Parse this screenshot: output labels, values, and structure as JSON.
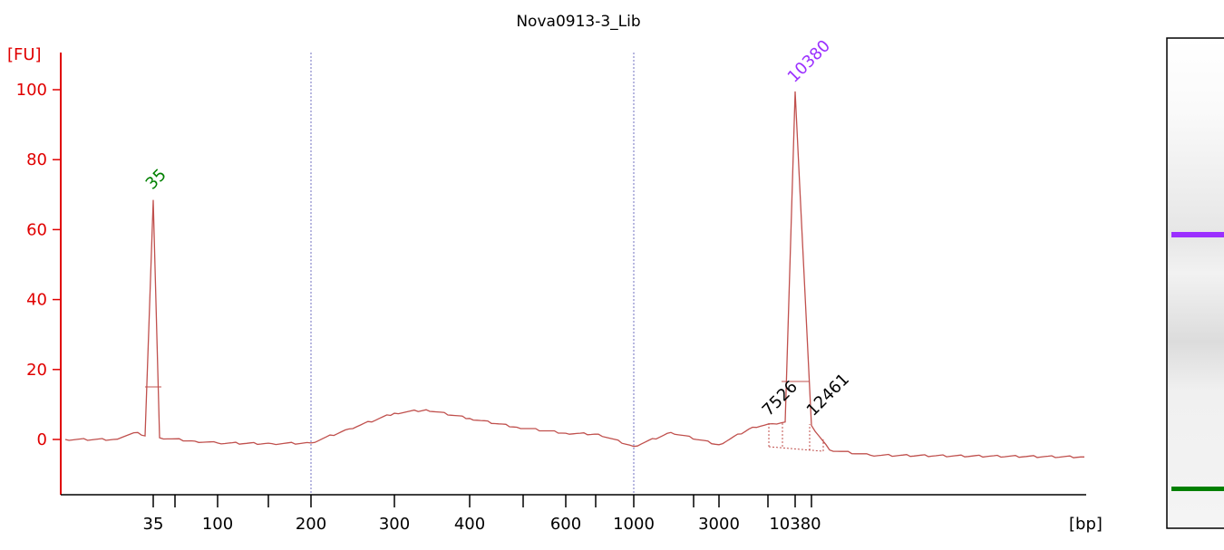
{
  "chart_data": {
    "type": "line",
    "title": "Nova0913-3_Lib",
    "ylabel": "[FU]",
    "xlabel": "[bp]",
    "ylim": [
      -15,
      113
    ],
    "y_ticks": [
      0,
      20,
      40,
      60,
      80,
      100
    ],
    "x_tick_labels": [
      "35",
      "100",
      "200",
      "300",
      "400",
      "600",
      "1000",
      "3000",
      "10380"
    ],
    "x_ticks_unlabeled_count": 7,
    "gridlines_at": [
      "200",
      "1000"
    ],
    "series": [
      {
        "color": "#c0504d",
        "points": [
          [
            "25",
            0.0
          ],
          [
            "30",
            0.0
          ],
          [
            "33",
            2.0
          ],
          [
            "34",
            1.0
          ],
          [
            "35",
            68.5
          ],
          [
            "36",
            0.5
          ],
          [
            "50",
            -0.5
          ],
          [
            "100",
            -1.0
          ],
          [
            "150",
            -1.2
          ],
          [
            "200",
            -1.0
          ],
          [
            "250",
            3.0
          ],
          [
            "300",
            7.5
          ],
          [
            "350",
            8.5
          ],
          [
            "400",
            6.0
          ],
          [
            "500",
            3.5
          ],
          [
            "600",
            1.8
          ],
          [
            "800",
            1.5
          ],
          [
            "1000",
            -2.0
          ],
          [
            "1500",
            2.0
          ],
          [
            "3000",
            -1.5
          ],
          [
            "5000",
            3.5
          ],
          [
            "7526",
            4.5
          ],
          [
            "9000",
            5.0
          ],
          [
            "10380",
            99.5
          ],
          [
            "12461",
            4.0
          ],
          [
            "15000",
            -3.0
          ],
          [
            "20000",
            -4.5
          ],
          [
            "30000",
            -5.0
          ]
        ]
      }
    ],
    "peak_labels": [
      {
        "text": "35",
        "color": "#008000"
      },
      {
        "text": "10380",
        "color": "#9b30ff"
      },
      {
        "text": "7526",
        "color": "#000000"
      },
      {
        "text": "12461",
        "color": "#000000"
      }
    ],
    "axis_color": "#e00000",
    "gel": {
      "bands": [
        {
          "name": "upper marker",
          "color": "#9b30ff"
        },
        {
          "name": "lower marker",
          "color": "#008000"
        }
      ]
    }
  }
}
